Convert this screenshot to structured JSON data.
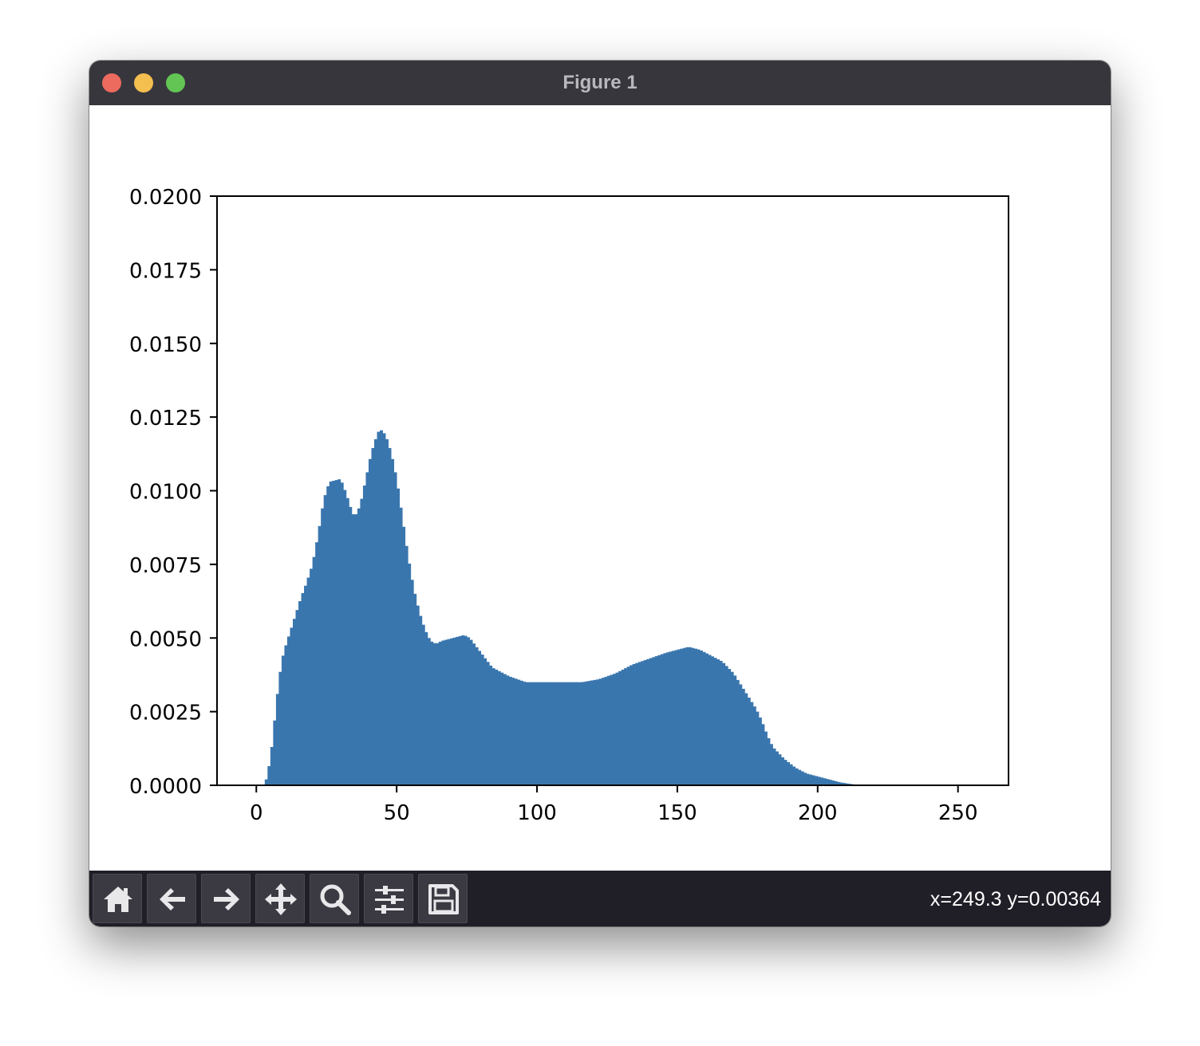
{
  "window": {
    "title": "Figure 1",
    "traffic_colors": {
      "close": "#ed6a5e",
      "minimize": "#f5bf4f",
      "zoom": "#62c554"
    }
  },
  "toolbar": {
    "buttons": [
      {
        "name": "home",
        "icon": "home-icon"
      },
      {
        "name": "back",
        "icon": "arrow-left-icon"
      },
      {
        "name": "forward",
        "icon": "arrow-right-icon"
      },
      {
        "name": "pan",
        "icon": "move-icon"
      },
      {
        "name": "zoom",
        "icon": "magnifier-icon"
      },
      {
        "name": "configure-subplots",
        "icon": "sliders-icon"
      },
      {
        "name": "save",
        "icon": "floppy-disk-icon"
      }
    ],
    "coordinates_readout": "x=249.3 y=0.00364"
  },
  "chart_data": {
    "type": "bar",
    "title": "",
    "xlabel": "",
    "ylabel": "",
    "color": "#3a76ae",
    "xlim": [
      -14,
      268
    ],
    "ylim": [
      0,
      0.02
    ],
    "x_ticks": [
      0,
      50,
      100,
      150,
      200,
      250
    ],
    "x_tick_labels": [
      "0",
      "50",
      "100",
      "150",
      "200",
      "250"
    ],
    "y_ticks": [
      0,
      0.0025,
      0.005,
      0.0075,
      0.01,
      0.0125,
      0.015,
      0.0175,
      0.02
    ],
    "y_tick_labels": [
      "0.0000",
      "0.0025",
      "0.0050",
      "0.0075",
      "0.0100",
      "0.0125",
      "0.0150",
      "0.0175",
      "0.0200"
    ],
    "grid": false,
    "bin_width": 1,
    "histogram_profile": [
      [
        0,
        0
      ],
      [
        3,
        0
      ],
      [
        4,
        0.0004
      ],
      [
        5,
        0.0009
      ],
      [
        6,
        0.0017
      ],
      [
        7,
        0.0027
      ],
      [
        8,
        0.0035
      ],
      [
        9,
        0.0042
      ],
      [
        10,
        0.0046
      ],
      [
        12,
        0.0052
      ],
      [
        14,
        0.0058
      ],
      [
        16,
        0.0064
      ],
      [
        18,
        0.0069
      ],
      [
        20,
        0.0075
      ],
      [
        22,
        0.0085
      ],
      [
        24,
        0.0097
      ],
      [
        26,
        0.0103
      ],
      [
        30,
        0.0104
      ],
      [
        32,
        0.0099
      ],
      [
        34,
        0.0093
      ],
      [
        35,
        0.0091
      ],
      [
        37,
        0.0095
      ],
      [
        39,
        0.0104
      ],
      [
        41,
        0.0113
      ],
      [
        43,
        0.0119
      ],
      [
        44,
        0.0121
      ],
      [
        46,
        0.0119
      ],
      [
        48,
        0.0113
      ],
      [
        50,
        0.0104
      ],
      [
        52,
        0.0091
      ],
      [
        54,
        0.0078
      ],
      [
        56,
        0.0067
      ],
      [
        58,
        0.0059
      ],
      [
        60,
        0.0053
      ],
      [
        62,
        0.0049
      ],
      [
        64,
        0.0048
      ],
      [
        66,
        0.0049
      ],
      [
        70,
        0.005
      ],
      [
        74,
        0.0051
      ],
      [
        76,
        0.005
      ],
      [
        80,
        0.0045
      ],
      [
        84,
        0.004
      ],
      [
        90,
        0.0037
      ],
      [
        96,
        0.0035
      ],
      [
        104,
        0.0035
      ],
      [
        110,
        0.0035
      ],
      [
        116,
        0.0035
      ],
      [
        122,
        0.0036
      ],
      [
        128,
        0.0038
      ],
      [
        134,
        0.0041
      ],
      [
        140,
        0.0043
      ],
      [
        146,
        0.0045
      ],
      [
        150,
        0.0046
      ],
      [
        154,
        0.0047
      ],
      [
        158,
        0.0046
      ],
      [
        162,
        0.0044
      ],
      [
        166,
        0.0042
      ],
      [
        170,
        0.0038
      ],
      [
        174,
        0.0032
      ],
      [
        178,
        0.0026
      ],
      [
        180,
        0.0022
      ],
      [
        182,
        0.0017
      ],
      [
        184,
        0.0013
      ],
      [
        188,
        0.0009
      ],
      [
        192,
        0.0006
      ],
      [
        196,
        0.0004
      ],
      [
        200,
        0.0003
      ],
      [
        204,
        0.0002
      ],
      [
        208,
        0.0001
      ],
      [
        212,
        4e-05
      ],
      [
        216,
        0
      ],
      [
        255,
        0
      ]
    ]
  }
}
